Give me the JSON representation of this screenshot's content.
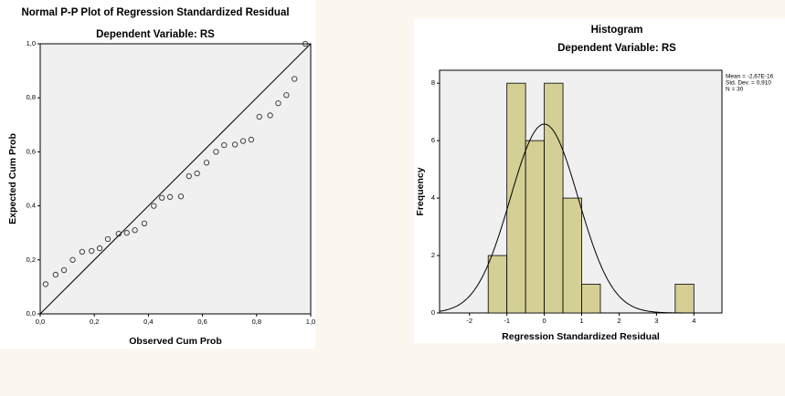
{
  "chart_data": [
    {
      "type": "scatter",
      "title": "Normal P-P Plot of Regression Standardized Residual",
      "subtitle": "Dependent Variable: RS",
      "xlabel": "Observed Cum Prob",
      "ylabel": "Expected Cum Prob",
      "xlim": [
        0,
        1
      ],
      "ylim": [
        0,
        1
      ],
      "xticks": [
        {
          "value": 0,
          "label": "0,0"
        },
        {
          "value": 0.2,
          "label": "0,2"
        },
        {
          "value": 0.4,
          "label": "0,4"
        },
        {
          "value": 0.6,
          "label": "0,6"
        },
        {
          "value": 0.8,
          "label": "0,8"
        },
        {
          "value": 1,
          "label": "1,0"
        }
      ],
      "yticks": [
        {
          "value": 0,
          "label": "0,0"
        },
        {
          "value": 0.2,
          "label": "0,2"
        },
        {
          "value": 0.4,
          "label": "0,4"
        },
        {
          "value": 0.6,
          "label": "0,6"
        },
        {
          "value": 0.8,
          "label": "0,8"
        },
        {
          "value": 1,
          "label": "1,0"
        }
      ],
      "x": [
        0.02,
        0.057,
        0.088,
        0.12,
        0.155,
        0.19,
        0.22,
        0.25,
        0.29,
        0.32,
        0.35,
        0.385,
        0.42,
        0.45,
        0.48,
        0.52,
        0.55,
        0.58,
        0.615,
        0.65,
        0.68,
        0.72,
        0.75,
        0.78,
        0.81,
        0.85,
        0.88,
        0.91,
        0.94,
        0.98
      ],
      "values": [
        0.11,
        0.145,
        0.162,
        0.2,
        0.23,
        0.233,
        0.243,
        0.277,
        0.297,
        0.3,
        0.31,
        0.335,
        0.4,
        0.43,
        0.433,
        0.435,
        0.51,
        0.52,
        0.56,
        0.6,
        0.625,
        0.627,
        0.64,
        0.645,
        0.73,
        0.735,
        0.78,
        0.81,
        0.87,
        1.0
      ],
      "color": "#333333"
    },
    {
      "type": "histogram",
      "title": "Histogram",
      "subtitle": "Dependent Variable: RS",
      "xlabel": "Regression Standardized Residual",
      "ylabel": "Frequency",
      "xlim": [
        -2.8,
        4.75
      ],
      "ylim": [
        0,
        8.45
      ],
      "xticks": [
        -2,
        -1,
        0,
        1,
        2,
        3,
        4
      ],
      "yticks": [
        0,
        2,
        4,
        6,
        8
      ],
      "bins": [
        -1.5,
        -1,
        -0.5,
        0,
        0.5,
        1,
        1.5,
        2,
        2.5,
        3,
        3.5,
        4
      ],
      "values": [
        2,
        8,
        6,
        8,
        4,
        1,
        0,
        0,
        0,
        0,
        1
      ],
      "color": "#d4cf94",
      "stats": [
        {
          "value": -2.67e-16,
          "label": "Mean = -2,67E-16"
        },
        {
          "value": 0.91,
          "label": "Std. Dev. = 0,910"
        },
        {
          "value": 30,
          "label": "N = 30"
        }
      ]
    }
  ]
}
